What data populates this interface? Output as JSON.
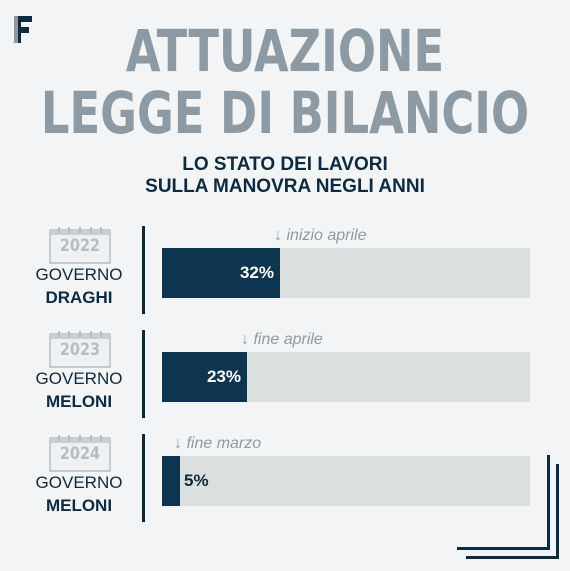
{
  "brand": {
    "logo_text": "F"
  },
  "title_line1": "ATTUAZIONE",
  "title_line2": "LEGGE DI BILANCIO",
  "subtitle_line1": "LO STATO DEI LAVORI",
  "subtitle_line2": "SULLA MANOVRA NEGLI ANNI",
  "colors": {
    "title": "#8d9aa3",
    "navy": "#0e2a3f",
    "bar_fill": "#0d3550",
    "bar_track": "#dcdfe0",
    "note": "#8f9aa0"
  },
  "chart_data": {
    "type": "bar",
    "orientation": "horizontal",
    "xlim": [
      0,
      100
    ],
    "categories": [
      "2022",
      "2023",
      "2024"
    ],
    "values": [
      32,
      23,
      5
    ],
    "rows": [
      {
        "year": "2022",
        "gov_label": "GOVERNO",
        "gov_name": "DRAGHI",
        "value": 32,
        "value_label": "32%",
        "note": "↓ inizio aprile"
      },
      {
        "year": "2023",
        "gov_label": "GOVERNO",
        "gov_name": "MELONI",
        "value": 23,
        "value_label": "23%",
        "note": "↓ fine aprile"
      },
      {
        "year": "2024",
        "gov_label": "GOVERNO",
        "gov_name": "MELONI",
        "value": 5,
        "value_label": "5%",
        "note": "↓ fine marzo"
      }
    ]
  }
}
